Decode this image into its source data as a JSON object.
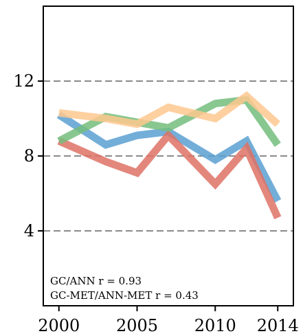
{
  "chart_data": {
    "type": "line",
    "title": "",
    "xlabel": "",
    "ylabel": "",
    "xlim": [
      1999.0,
      2015.0
    ],
    "ylim": [
      0,
      16
    ],
    "grid": "horizontal dashed at major y ticks",
    "x_ticks": [
      "2000",
      "2005",
      "2010",
      "2014"
    ],
    "y_ticks": [
      "4",
      "8",
      "12"
    ],
    "annotations": [
      "GC/ANN r = 0.93",
      "GC-MET/ANN-MET r = 0.43"
    ],
    "series": [
      {
        "color": "#5aa0d2",
        "x": [
          2000,
          2003,
          2005,
          2007,
          2010,
          2012,
          2014
        ],
        "values": [
          10.2,
          8.6,
          9.1,
          9.3,
          7.8,
          8.8,
          5.6
        ]
      },
      {
        "color": "#de7265",
        "x": [
          2000,
          2003,
          2005,
          2007,
          2010,
          2012,
          2014
        ],
        "values": [
          8.8,
          7.7,
          7.1,
          9.1,
          6.5,
          8.4,
          4.7
        ]
      },
      {
        "color": "#74bd7c",
        "x": [
          2000,
          2003,
          2005,
          2007,
          2010,
          2012,
          2014
        ],
        "values": [
          8.8,
          10.1,
          9.8,
          9.5,
          10.8,
          11.0,
          8.6
        ]
      },
      {
        "color": "#fec88f",
        "x": [
          2000,
          2003,
          2005,
          2007,
          2010,
          2012,
          2014
        ],
        "values": [
          10.3,
          10.0,
          9.7,
          10.6,
          10.0,
          11.2,
          9.7
        ]
      }
    ]
  }
}
